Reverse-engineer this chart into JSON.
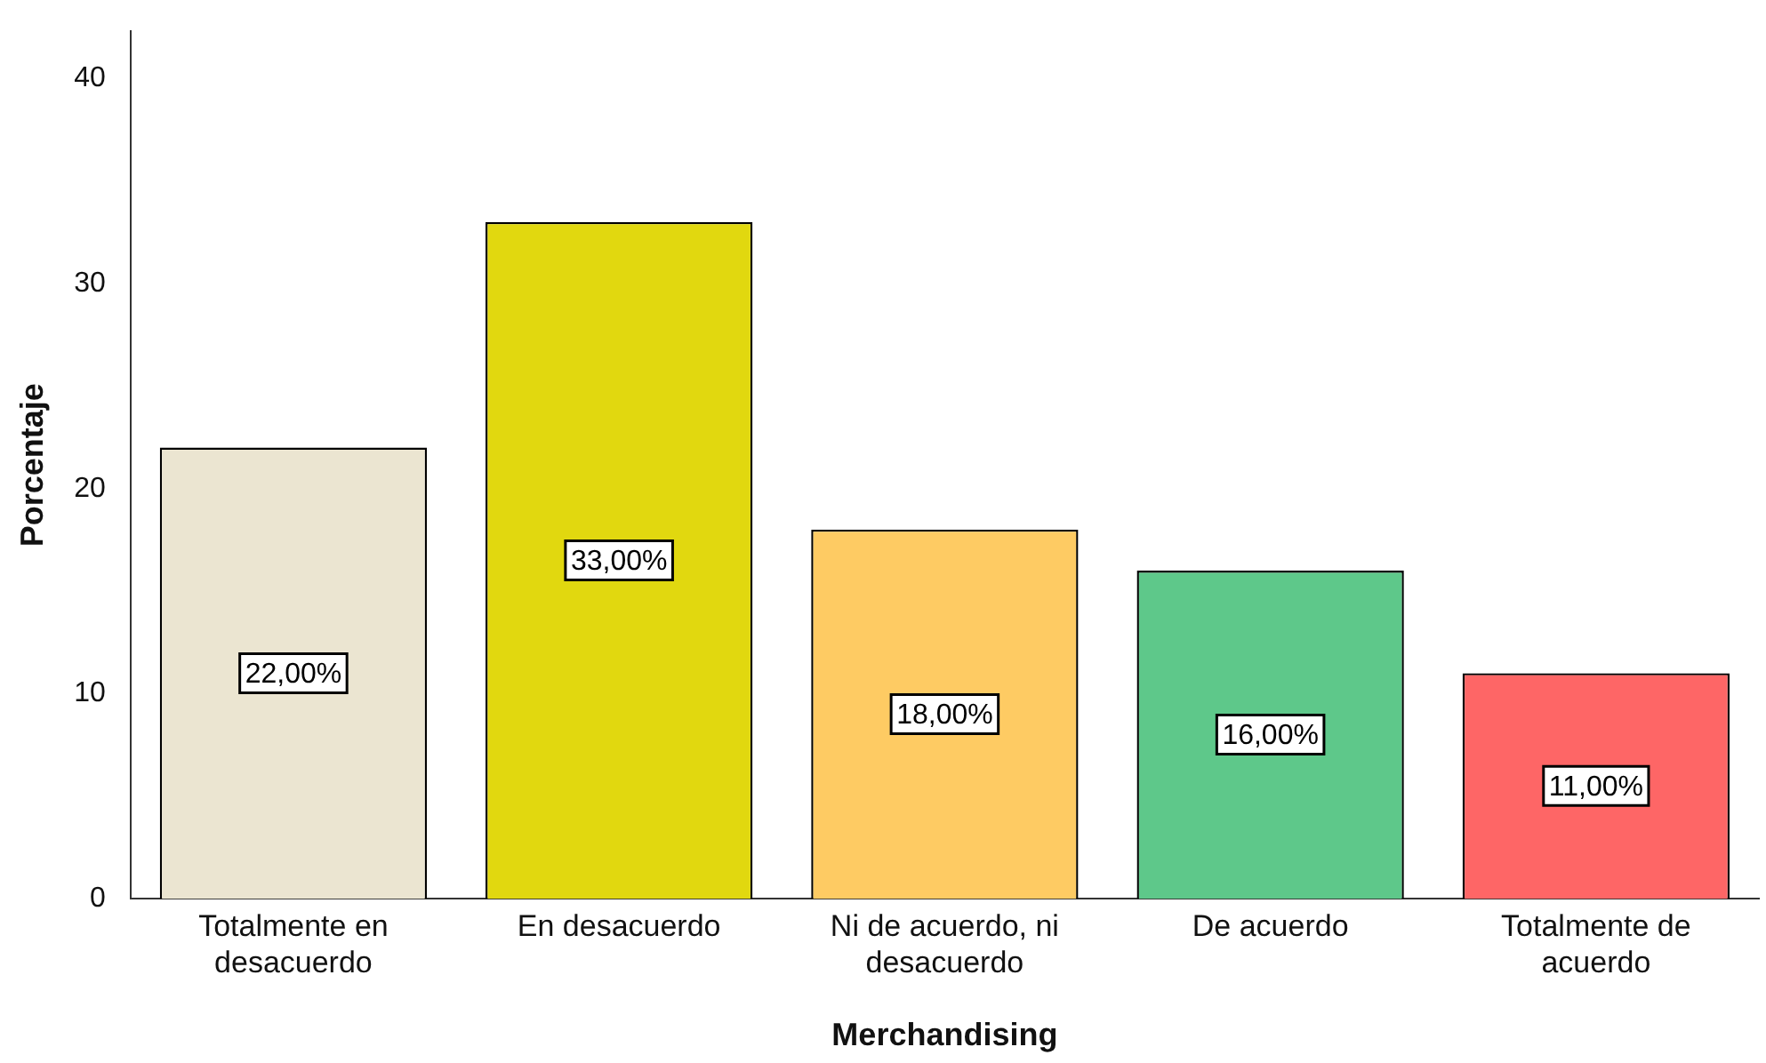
{
  "chart_data": {
    "type": "bar",
    "xlabel": "Merchandising",
    "ylabel": "Porcentaje",
    "categories": [
      "Totalmente en desacuerdo",
      "En desacuerdo",
      "Ni de acuerdo, ni desacuerdo",
      "De acuerdo",
      "Totalmente de acuerdo"
    ],
    "values": [
      22,
      33,
      18,
      16,
      11
    ],
    "colors": [
      "#ebe5d1",
      "#e1d80f",
      "#fecb63",
      "#5ec88a",
      "#fe6666"
    ],
    "value_labels": [
      "22,00%",
      "33,00%",
      "18,00%",
      "16,00%",
      "11,00%"
    ],
    "ylim": [
      0,
      42.3
    ],
    "yticks": [
      0,
      10,
      20,
      30,
      40
    ],
    "grid": false,
    "legend": false
  }
}
